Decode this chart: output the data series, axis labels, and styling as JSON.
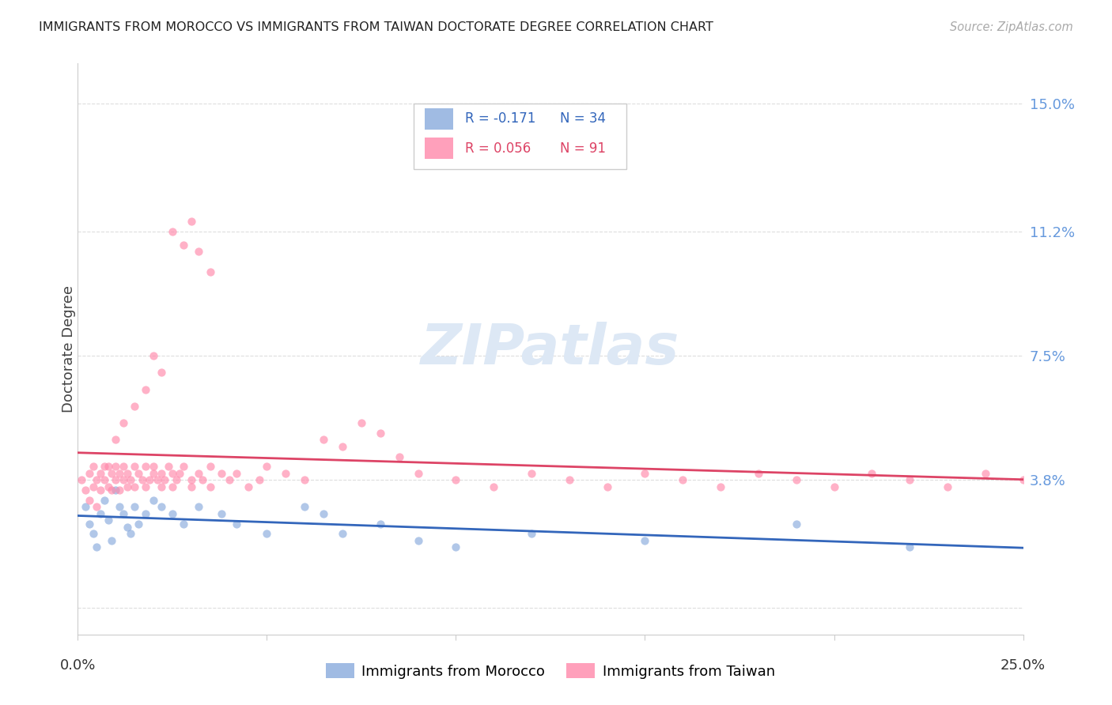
{
  "title": "IMMIGRANTS FROM MOROCCO VS IMMIGRANTS FROM TAIWAN DOCTORATE DEGREE CORRELATION CHART",
  "source": "Source: ZipAtlas.com",
  "ylabel": "Doctorate Degree",
  "yticks": [
    0.0,
    0.038,
    0.075,
    0.112,
    0.15
  ],
  "ytick_labels": [
    "",
    "3.8%",
    "7.5%",
    "11.2%",
    "15.0%"
  ],
  "xlim": [
    0.0,
    0.25
  ],
  "ylim": [
    -0.008,
    0.162
  ],
  "morocco_color": "#88aadd",
  "morocco_edge_color": "#5588cc",
  "taiwan_color": "#ff88aa",
  "taiwan_edge_color": "#ee5577",
  "morocco_R": -0.171,
  "morocco_N": 34,
  "taiwan_R": 0.056,
  "taiwan_N": 91,
  "morocco_line_color": "#3366bb",
  "taiwan_line_color": "#dd4466",
  "grid_color": "#dddddd",
  "spine_color": "#cccccc",
  "right_tick_color": "#6699dd",
  "watermark_color": "#dde8f5"
}
